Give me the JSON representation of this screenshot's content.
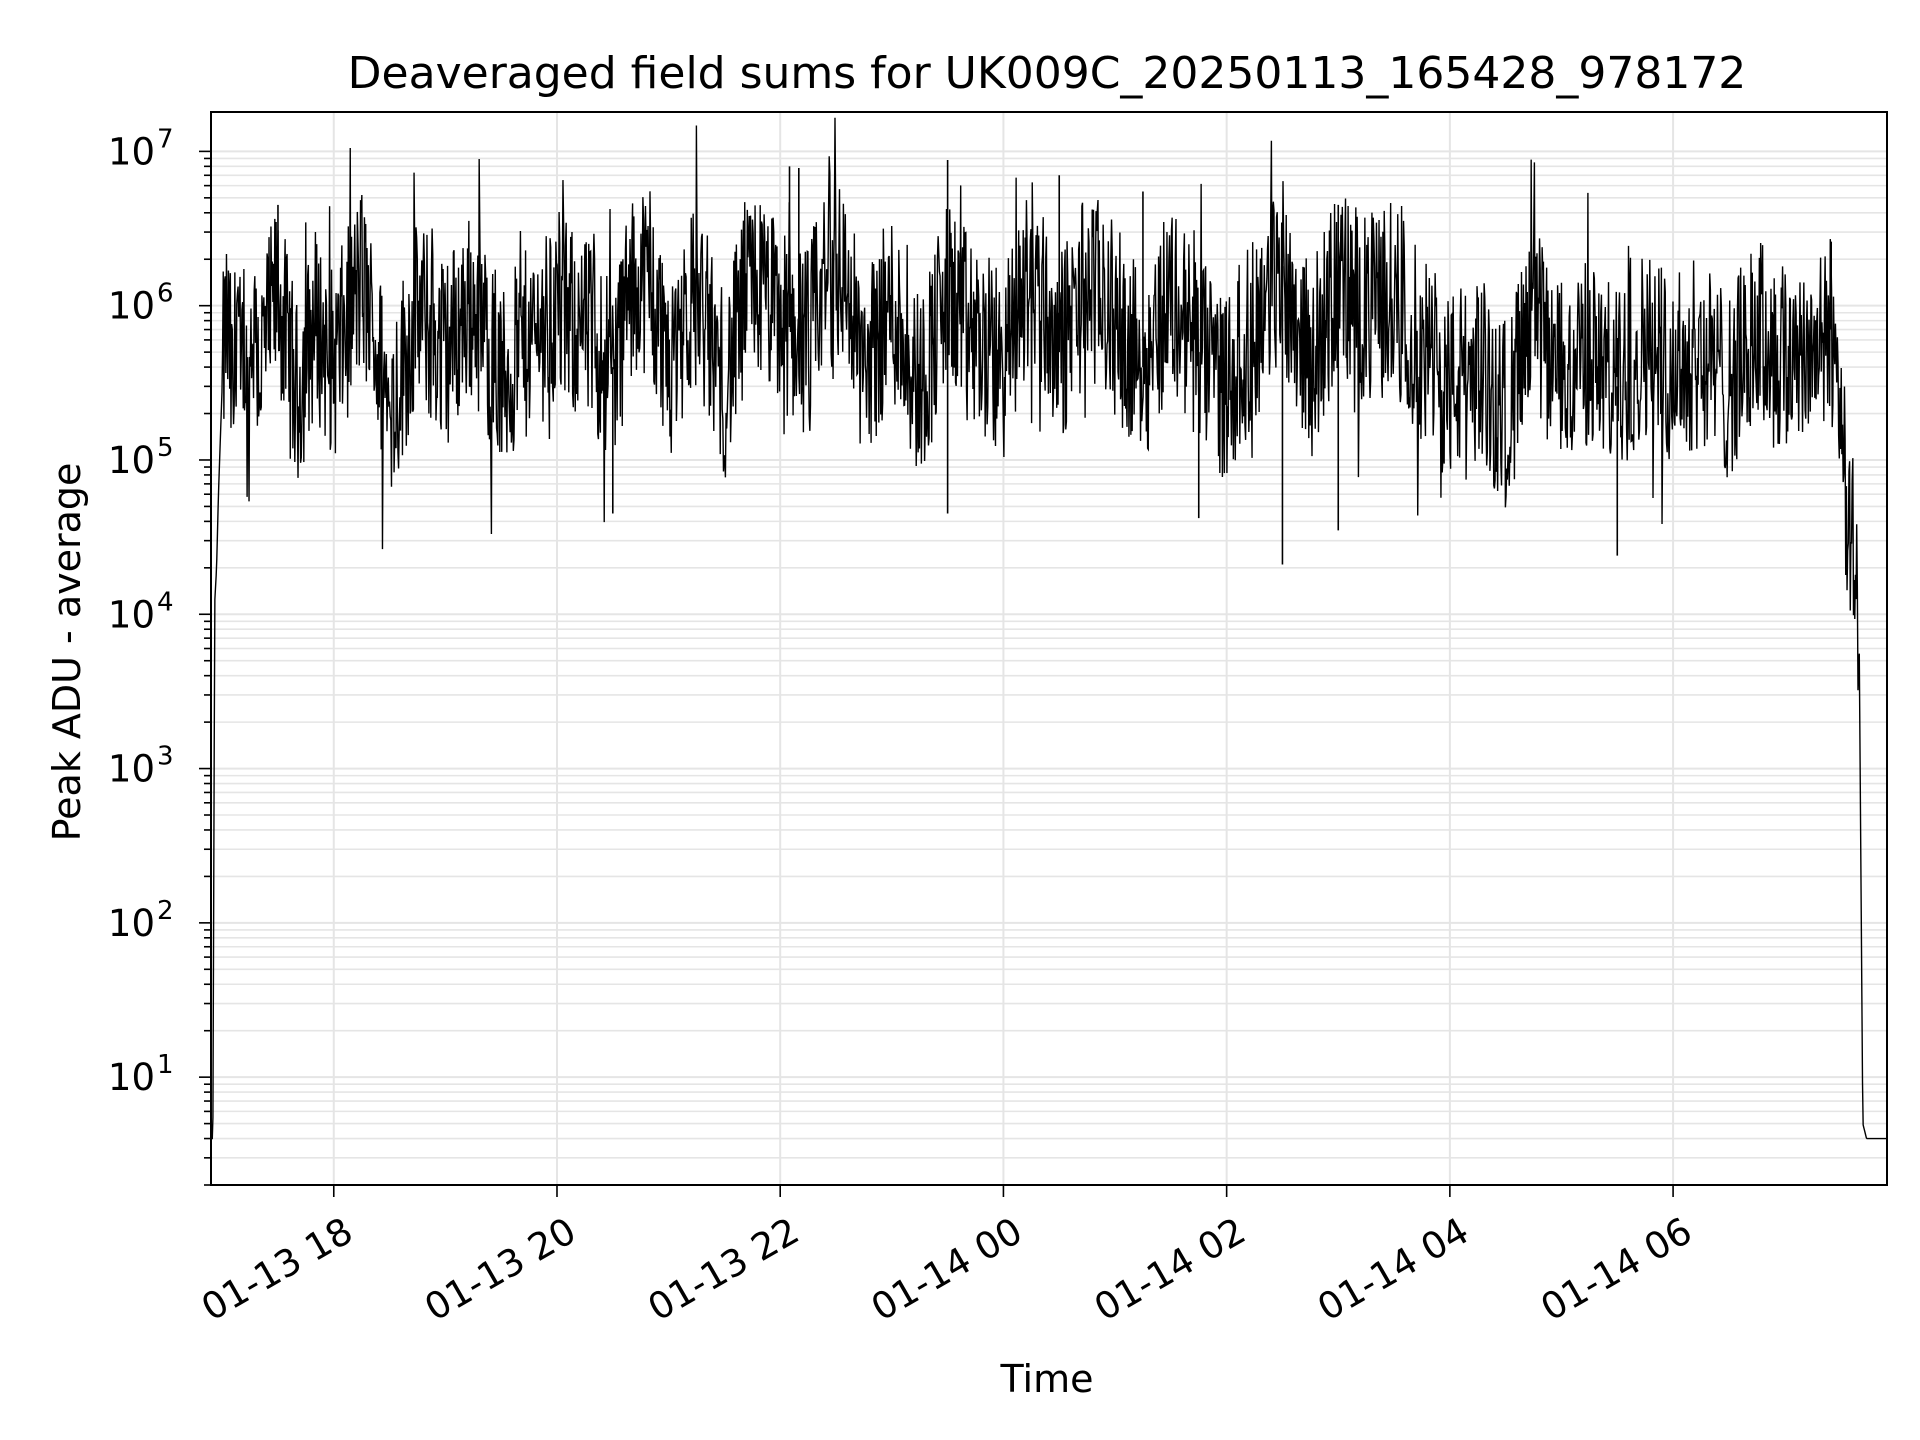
{
  "chart_data": {
    "type": "line",
    "title": "Deaveraged field sums for UK009C_20250113_165428_978172",
    "xlabel": "Time",
    "ylabel": "Peak ADU - average",
    "yscale": "log",
    "ylim": [
      2,
      18000000
    ],
    "xlim": [
      "2025-01-13 16:54",
      "2025-01-14 07:55"
    ],
    "grid": true,
    "grid_color": "#e5e5e5",
    "line_color": "#000000",
    "xticks": [
      {
        "x": "2025-01-13 18:00",
        "label": "01-13 18"
      },
      {
        "x": "2025-01-13 20:00",
        "label": "01-13 20"
      },
      {
        "x": "2025-01-13 22:00",
        "label": "01-13 22"
      },
      {
        "x": "2025-01-14 00:00",
        "label": "01-14 00"
      },
      {
        "x": "2025-01-14 02:00",
        "label": "01-14 02"
      },
      {
        "x": "2025-01-14 04:00",
        "label": "01-14 04"
      },
      {
        "x": "2025-01-14 06:00",
        "label": "01-14 06"
      }
    ],
    "yticks": [
      {
        "y": 10,
        "base": "10",
        "exp": "1"
      },
      {
        "y": 100,
        "base": "10",
        "exp": "2"
      },
      {
        "y": 1000,
        "base": "10",
        "exp": "3"
      },
      {
        "y": 10000,
        "base": "10",
        "exp": "4"
      },
      {
        "y": 100000,
        "base": "10",
        "exp": "5"
      },
      {
        "y": 1000000,
        "base": "10",
        "exp": "6"
      },
      {
        "y": 10000000,
        "base": "10",
        "exp": "7"
      }
    ],
    "series": [
      {
        "x": [
          "2025-01-13 16:54",
          "2025-01-13 16:55",
          "2025-01-13 16:56",
          "2025-01-13 16:57",
          "2025-01-13 16:58",
          "2025-01-13 17:00",
          "2025-01-13 17:02",
          "2025-01-13 17:04",
          "2025-01-13 17:06",
          "2025-01-13 17:08",
          "2025-01-13 17:10",
          "2025-01-13 17:12",
          "2025-01-13 17:14",
          "2025-01-13 17:16",
          "2025-01-13 17:20",
          "2025-01-13 17:30",
          "2025-01-13 17:40",
          "2025-01-13 17:50",
          "2025-01-13 18:00",
          "2025-01-13 18:15",
          "2025-01-13 18:30",
          "2025-01-13 18:45",
          "2025-01-13 19:00",
          "2025-01-13 19:15",
          "2025-01-13 19:30",
          "2025-01-13 19:45",
          "2025-01-13 20:00",
          "2025-01-13 20:15",
          "2025-01-13 20:30",
          "2025-01-13 20:45",
          "2025-01-13 21:00",
          "2025-01-13 21:15",
          "2025-01-13 21:30",
          "2025-01-13 21:45",
          "2025-01-13 22:00",
          "2025-01-13 22:15",
          "2025-01-13 22:30",
          "2025-01-13 22:45",
          "2025-01-13 23:00",
          "2025-01-13 23:15",
          "2025-01-13 23:30",
          "2025-01-13 23:45",
          "2025-01-14 00:00",
          "2025-01-14 00:15",
          "2025-01-14 00:30",
          "2025-01-14 00:45",
          "2025-01-14 01:00",
          "2025-01-14 01:15",
          "2025-01-14 01:30",
          "2025-01-14 01:45",
          "2025-01-14 02:00",
          "2025-01-14 02:15",
          "2025-01-14 02:30",
          "2025-01-14 02:45",
          "2025-01-14 03:00",
          "2025-01-14 03:15",
          "2025-01-14 03:30",
          "2025-01-14 03:45",
          "2025-01-14 04:00",
          "2025-01-14 04:15",
          "2025-01-14 04:30",
          "2025-01-14 04:45",
          "2025-01-14 05:00",
          "2025-01-14 05:15",
          "2025-01-14 05:30",
          "2025-01-14 05:45",
          "2025-01-14 06:00",
          "2025-01-14 06:15",
          "2025-01-14 06:30",
          "2025-01-14 06:45",
          "2025-01-14 07:00",
          "2025-01-14 07:10",
          "2025-01-14 07:20",
          "2025-01-14 07:25",
          "2025-01-14 07:28",
          "2025-01-14 07:31",
          "2025-01-14 07:34",
          "2025-01-14 07:37",
          "2025-01-14 07:40",
          "2025-01-14 07:42",
          "2025-01-14 07:44",
          "2025-01-14 07:46",
          "2025-01-14 07:50",
          "2025-01-14 07:55"
        ],
        "y": [
          4,
          4,
          12000,
          20000,
          60000,
          300000,
          800000,
          500000,
          200000,
          1500000,
          300000,
          700000,
          150000,
          900000,
          400000,
          1200000,
          250000,
          800000,
          400000,
          1500000,
          200000,
          900000,
          500000,
          1100000,
          300000,
          600000,
          900000,
          700000,
          400000,
          1800000,
          500000,
          1200000,
          300000,
          1500000,
          800000,
          600000,
          2500000,
          400000,
          1000000,
          300000,
          1200000,
          600000,
          400000,
          1800000,
          500000,
          1500000,
          800000,
          400000,
          1200000,
          500000,
          300000,
          700000,
          1800000,
          400000,
          1500000,
          900000,
          1200000,
          500000,
          300000,
          400000,
          200000,
          800000,
          350000,
          500000,
          300000,
          600000,
          400000,
          500000,
          300000,
          700000,
          400000,
          600000,
          500000,
          700000,
          400000,
          200000,
          40000,
          25000,
          8000,
          5,
          4,
          4,
          4,
          4
        ],
        "spikes_high": [
          [
            "2025-01-13 17:30",
            4500000
          ],
          [
            "2025-01-13 22:05",
            8000000
          ],
          [
            "2025-01-13 22:10",
            7800000
          ],
          [
            "2025-01-13 23:30",
            8800000
          ],
          [
            "2025-01-14 00:30",
            7000000
          ],
          [
            "2025-01-14 01:15",
            5500000
          ],
          [
            "2025-01-14 03:00",
            4500000
          ],
          [
            "2025-01-14 07:25",
            2600000
          ]
        ],
        "spikes_low": [
          [
            "2025-01-13 20:30",
            45000
          ],
          [
            "2025-01-13 23:30",
            45000
          ],
          [
            "2025-01-14 01:45",
            42000
          ],
          [
            "2025-01-14 02:30",
            21000
          ],
          [
            "2025-01-14 03:00",
            35000
          ],
          [
            "2025-01-14 05:30",
            24000
          ]
        ]
      }
    ]
  }
}
